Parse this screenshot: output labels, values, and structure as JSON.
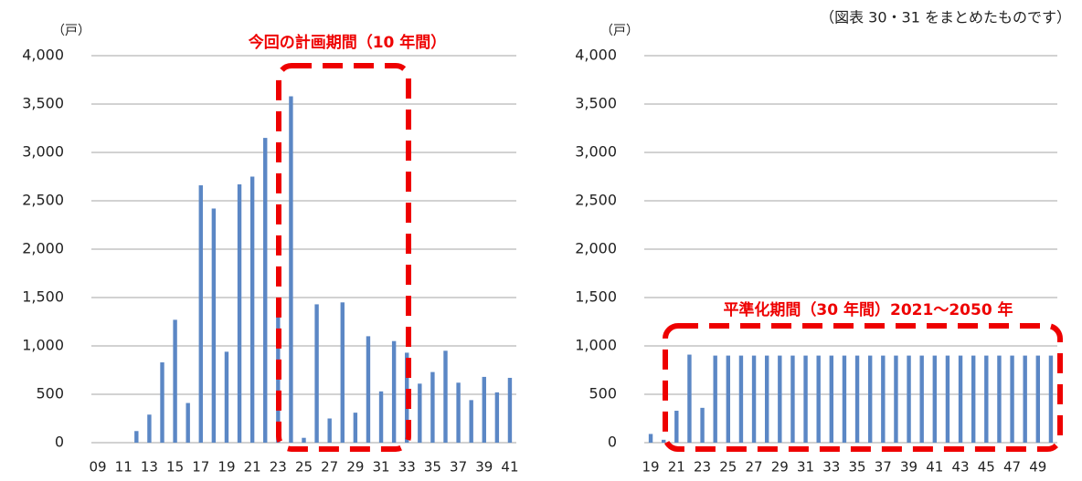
{
  "note": "（図表 30・31 をまとめたものです）",
  "chart_data": [
    {
      "type": "bar",
      "unit": "（戸）",
      "annotation": "今回の計画期間（10 年間）",
      "color": "#5b87c5",
      "grid": true,
      "categories": [
        "09",
        null,
        "11",
        null,
        "13",
        null,
        "15",
        null,
        "17",
        null,
        "19",
        null,
        "21",
        null,
        "23",
        null,
        "25",
        null,
        "27",
        null,
        "29",
        null,
        "31",
        null,
        "33",
        null,
        "35",
        null,
        "37",
        null,
        "39",
        null,
        "41"
      ],
      "values": [
        0,
        0,
        0,
        120,
        290,
        830,
        1270,
        410,
        2660,
        2420,
        940,
        2670,
        2750,
        3150,
        1430,
        3580,
        50,
        1430,
        250,
        1450,
        310,
        1100,
        530,
        1050,
        930,
        610,
        730,
        950,
        620,
        440,
        680,
        520,
        670
      ],
      "ylim": [
        0,
        4000
      ],
      "yticks": [
        0,
        500,
        {
          "value": 1000,
          "label": "1,000"
        },
        {
          "value": 1500,
          "label": "1,500"
        },
        {
          "value": 2000,
          "label": "2,000"
        },
        {
          "value": 2500,
          "label": "2,500"
        },
        {
          "value": 3000,
          "label": "3,000"
        },
        {
          "value": 3500,
          "label": "3,500"
        },
        {
          "value": 4000,
          "label": "4,000"
        }
      ]
    },
    {
      "type": "bar",
      "unit": "（戸）",
      "annotation": "平準化期間（30 年間）2021～2050 年",
      "color": "#5b87c5",
      "grid": true,
      "categories": [
        "19",
        null,
        "21",
        null,
        "23",
        null,
        "25",
        null,
        "27",
        null,
        "29",
        null,
        "31",
        null,
        "33",
        null,
        "35",
        null,
        "37",
        null,
        "39",
        null,
        "41",
        null,
        "43",
        null,
        "45",
        null,
        "47",
        null,
        "49",
        null
      ],
      "values": [
        90,
        30,
        330,
        910,
        360,
        900,
        900,
        900,
        900,
        900,
        900,
        900,
        900,
        900,
        900,
        900,
        900,
        900,
        900,
        900,
        900,
        900,
        900,
        900,
        900,
        900,
        900,
        900,
        900,
        900,
        900,
        900
      ],
      "ylim": [
        0,
        4000
      ],
      "yticks": [
        0,
        500,
        {
          "value": 1000,
          "label": "1,000"
        },
        {
          "value": 1500,
          "label": "1,500"
        },
        {
          "value": 2000,
          "label": "2,000"
        },
        {
          "value": 2500,
          "label": "2,500"
        },
        {
          "value": 3000,
          "label": "3,000"
        },
        {
          "value": 3500,
          "label": "3,500"
        },
        {
          "value": 4000,
          "label": "4,000"
        }
      ]
    }
  ]
}
